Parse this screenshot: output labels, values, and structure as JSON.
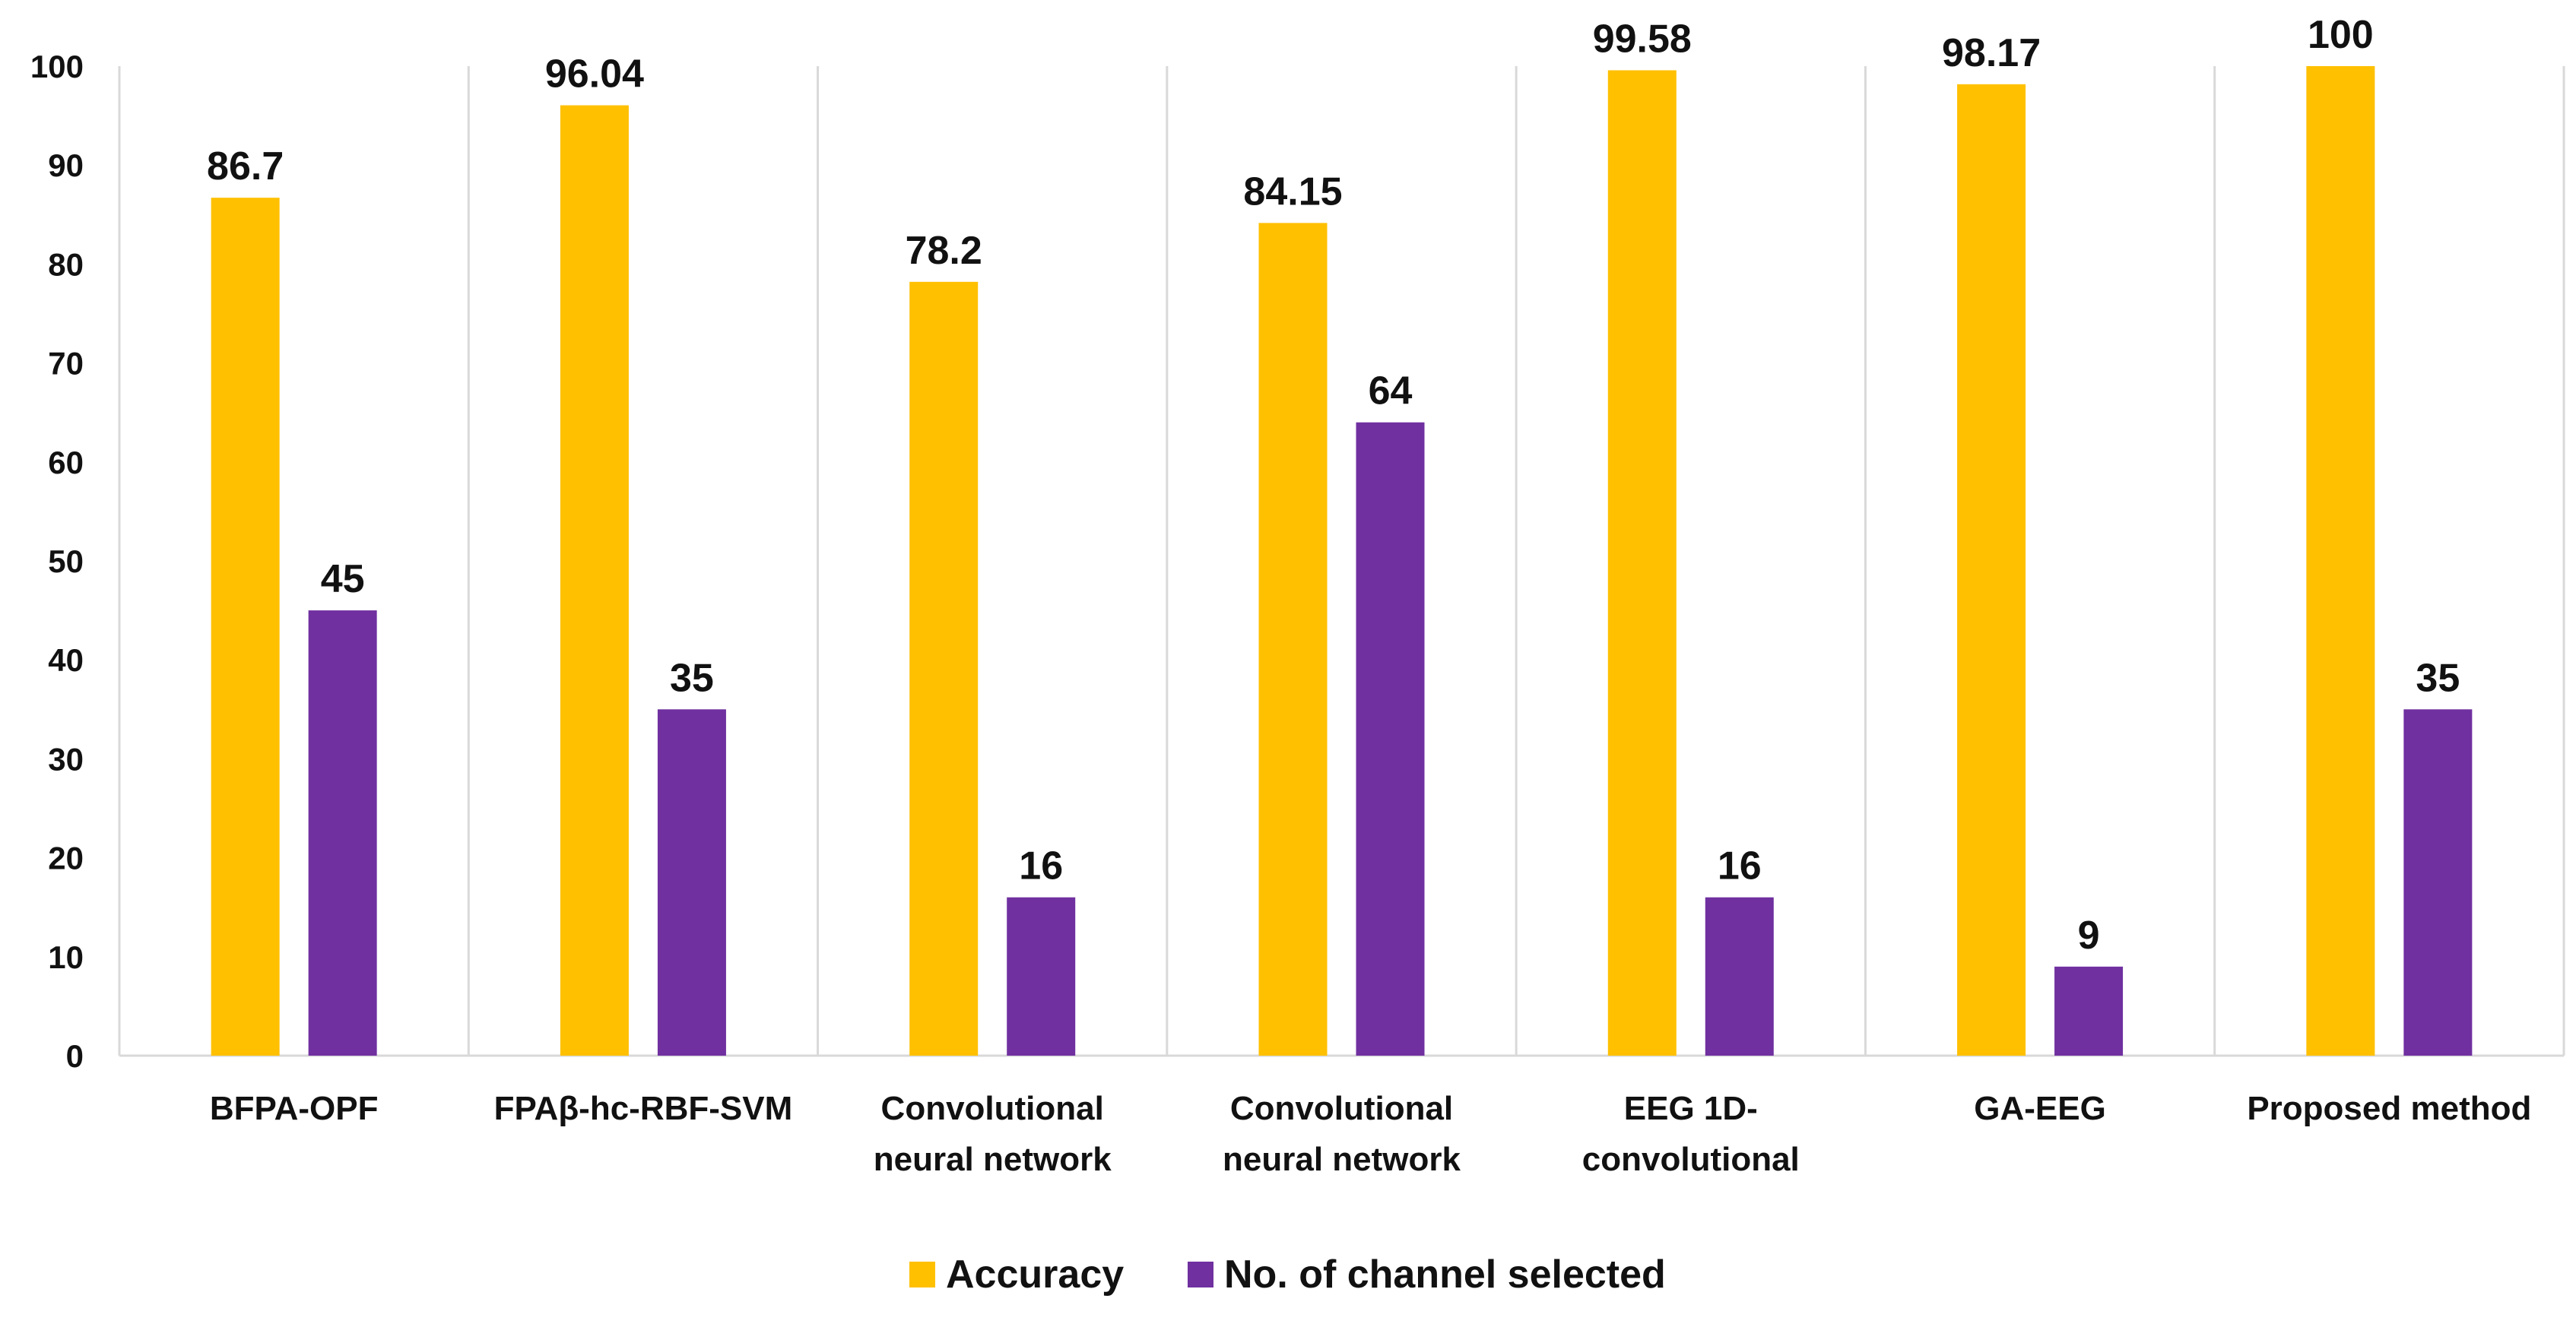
{
  "chart_data": {
    "type": "bar",
    "title": "",
    "xlabel": "",
    "ylabel": "",
    "ylim": [
      0,
      100
    ],
    "yticks": [
      0,
      10,
      20,
      30,
      40,
      50,
      60,
      70,
      80,
      90,
      100
    ],
    "grid": "vertical separators between categories",
    "legend_position": "bottom-center",
    "categories": [
      [
        "BFPA-OPF"
      ],
      [
        "FPAβ-hc-RBF-SVM"
      ],
      [
        "Convolutional",
        "neural network"
      ],
      [
        "Convolutional",
        "neural network"
      ],
      [
        "EEG 1D-",
        "convolutional"
      ],
      [
        "GA-EEG"
      ],
      [
        "Proposed method"
      ]
    ],
    "series": [
      {
        "name": "Accuracy",
        "color": "#FFC000",
        "values": [
          86.7,
          96.04,
          78.2,
          84.15,
          99.58,
          98.17,
          100
        ],
        "labels": [
          "86.7",
          "96.04",
          "78.2",
          "84.15",
          "99.58",
          "98.17",
          "100"
        ]
      },
      {
        "name": "No. of channel selected",
        "color": "#7030A0",
        "values": [
          45,
          35,
          16,
          64,
          16,
          9,
          35
        ],
        "labels": [
          "45",
          "35",
          "16",
          "64",
          "16",
          "9",
          "35"
        ]
      }
    ]
  }
}
